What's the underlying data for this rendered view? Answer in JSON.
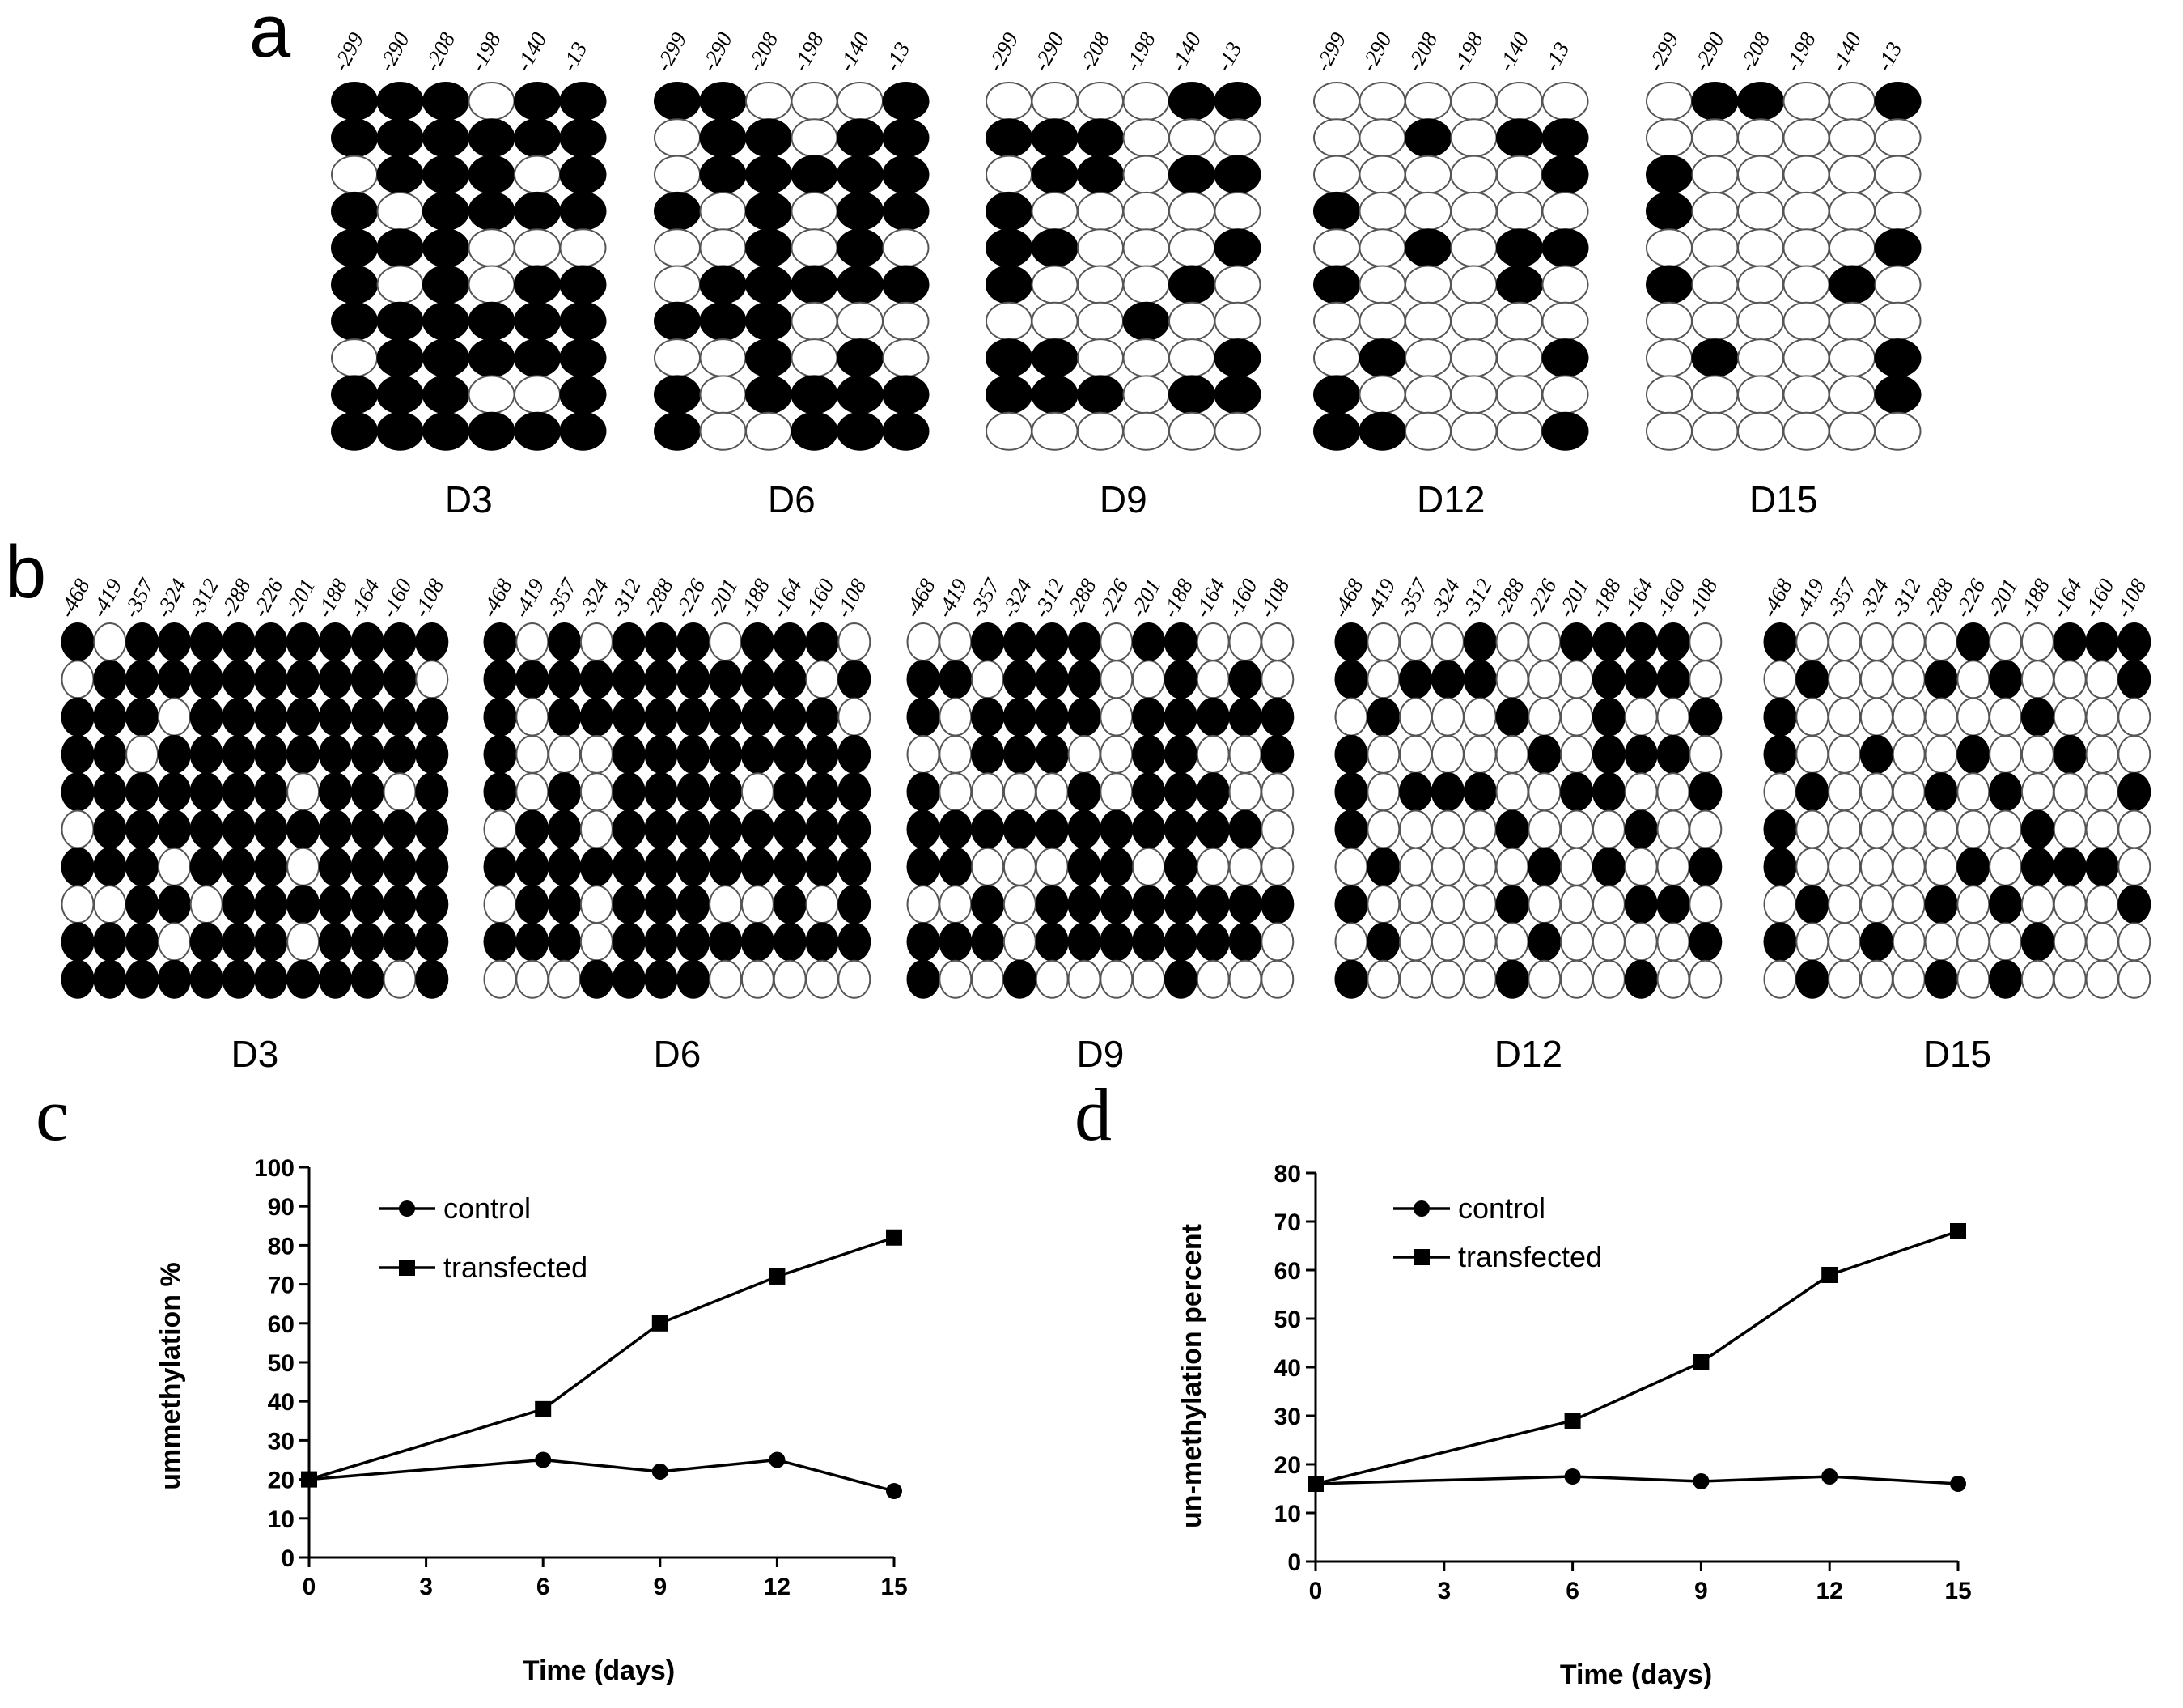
{
  "panels": {
    "a": {
      "letter": "a",
      "positions": [
        "-299",
        "-290",
        "-208",
        "-198",
        "-140",
        "-13"
      ],
      "groups": [
        {
          "label": "D3",
          "rows": [
            "111011",
            "111111",
            "011101",
            "101111",
            "111000",
            "101011",
            "111111",
            "011111",
            "111001",
            "111111"
          ]
        },
        {
          "label": "D6",
          "rows": [
            "110001",
            "011011",
            "011111",
            "101011",
            "001010",
            "011111",
            "111000",
            "001010",
            "101111",
            "100111"
          ]
        },
        {
          "label": "D9",
          "rows": [
            "000011",
            "111000",
            "011011",
            "100000",
            "110001",
            "100010",
            "000100",
            "110001",
            "111011",
            "000000"
          ]
        },
        {
          "label": "D12",
          "rows": [
            "000000",
            "001011",
            "000001",
            "100000",
            "001011",
            "100010",
            "000000",
            "010001",
            "100000",
            "110001"
          ]
        },
        {
          "label": "D15",
          "rows": [
            "011001",
            "000000",
            "100000",
            "100000",
            "000001",
            "100010",
            "000000",
            "010001",
            "000001",
            "000000"
          ]
        }
      ]
    },
    "b": {
      "letter": "b",
      "positions": [
        "-468",
        "-419",
        "-357",
        "-324",
        "-312",
        "-288",
        "-226",
        "-201",
        "-188",
        "-164",
        "-160",
        "-108"
      ],
      "groups": [
        {
          "label": "D3",
          "rows": [
            "101111111111",
            "011111111110",
            "111011111111",
            "110111111111",
            "111111101101",
            "011111111111",
            "111011101111",
            "001101111111",
            "111011101111",
            "111111111101"
          ]
        },
        {
          "label": "D6",
          "rows": [
            "101011101110",
            "111111111101",
            "101111111110",
            "100011111111",
            "101011110111",
            "011011111111",
            "111111111111",
            "011011100101",
            "111011111111",
            "000111100000"
          ]
        },
        {
          "label": "D9",
          "rows": [
            "001111011000",
            "110111001010",
            "101111011111",
            "001110011001",
            "100001011100",
            "111111111110",
            "110001101000",
            "001011111111",
            "111011111110",
            "100100001000"
          ]
        },
        {
          "label": "D12",
          "rows": [
            "100010011110",
            "101110001110",
            "010001001001",
            "100000101110",
            "101110011001",
            "100001000100",
            "010000101001",
            "100001000110",
            "010000100001",
            "100001000100"
          ]
        },
        {
          "label": "D15",
          "rows": [
            "100000100111",
            "010001010001",
            "100000001000",
            "100100100100",
            "010001010001",
            "100000001000",
            "100000101110",
            "010001010001",
            "100100001000",
            "010001010000"
          ]
        }
      ]
    },
    "c": {
      "letter": "c",
      "chart_data": {
        "type": "line",
        "xlabel": "Time (days)",
        "ylabel": "ummethylation %",
        "xlim": [
          0,
          15
        ],
        "ylim": [
          0,
          100
        ],
        "xticks": [
          "0",
          "3",
          "6",
          "9",
          "12",
          "15"
        ],
        "yticks": [
          "0",
          "10",
          "20",
          "30",
          "40",
          "50",
          "60",
          "70",
          "80",
          "90",
          "100"
        ],
        "legend_position": "top-left",
        "series": [
          {
            "name": "control",
            "marker": "circle",
            "x": [
              0,
              6,
              9,
              12,
              15
            ],
            "y": [
              20,
              25,
              22,
              25,
              17
            ]
          },
          {
            "name": "transfected",
            "marker": "square",
            "x": [
              0,
              6,
              9,
              12,
              15
            ],
            "y": [
              20,
              38,
              60,
              72,
              82
            ]
          }
        ]
      }
    },
    "d": {
      "letter": "d",
      "chart_data": {
        "type": "line",
        "xlabel": "Time (days)",
        "ylabel": "un-methylation percent",
        "xlim": [
          0,
          15
        ],
        "ylim": [
          0,
          80
        ],
        "xticks": [
          "0",
          "3",
          "6",
          "9",
          "12",
          "15"
        ],
        "yticks": [
          "0",
          "10",
          "20",
          "30",
          "40",
          "50",
          "60",
          "70",
          "80"
        ],
        "legend_position": "top-left",
        "series": [
          {
            "name": "control",
            "marker": "circle",
            "x": [
              0,
              6,
              9,
              12,
              15
            ],
            "y": [
              16,
              17.5,
              16.5,
              17.5,
              16
            ]
          },
          {
            "name": "transfected",
            "marker": "square",
            "x": [
              0,
              6,
              9,
              12,
              15
            ],
            "y": [
              16,
              29,
              41,
              59,
              68
            ]
          }
        ]
      }
    }
  },
  "colors": {
    "methylated": "#000000",
    "unmethylated": "#ffffff",
    "circle_stroke": "#555555",
    "axis": "#000000",
    "line": "#000000"
  }
}
